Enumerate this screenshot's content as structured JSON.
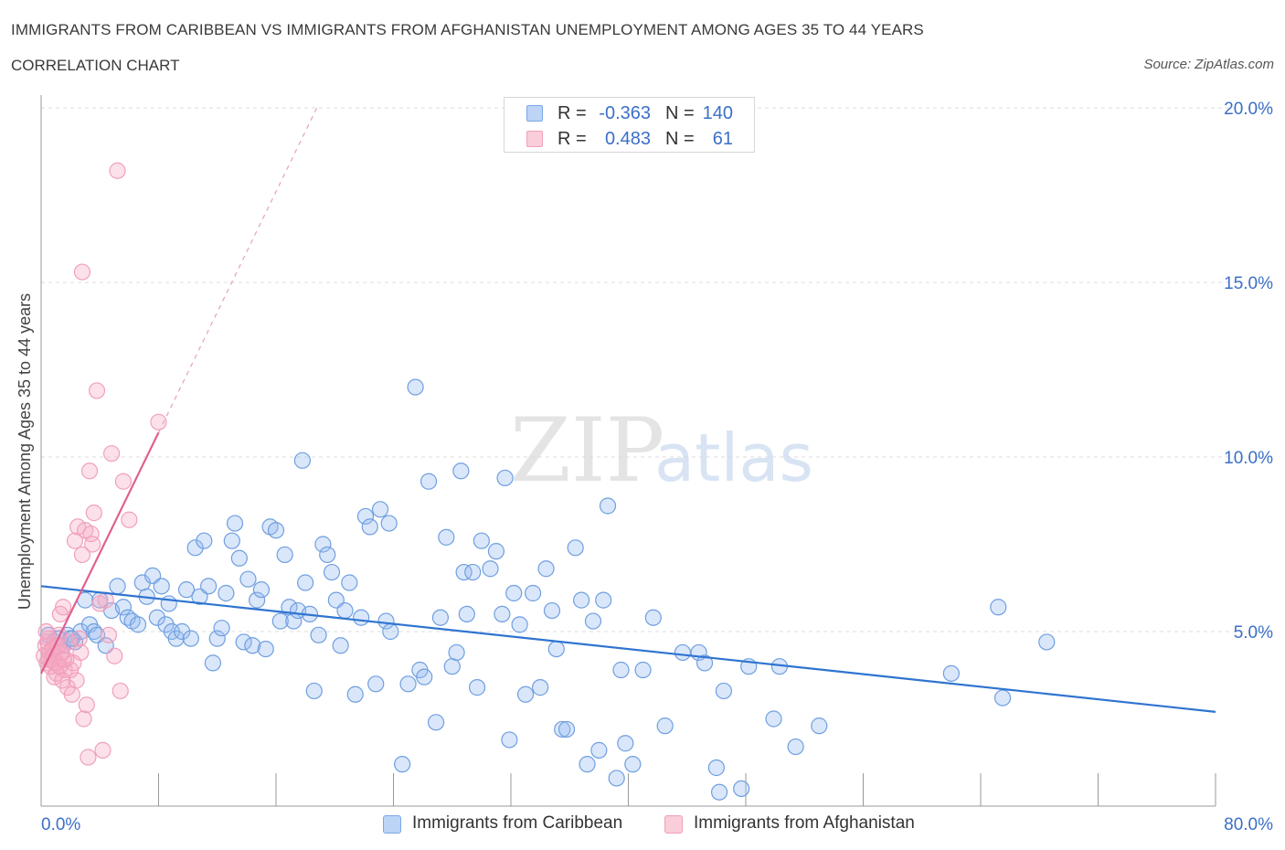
{
  "header": {
    "title": "IMMIGRANTS FROM CARIBBEAN VS IMMIGRANTS FROM AFGHANISTAN UNEMPLOYMENT AMONG AGES 35 TO 44 YEARS",
    "subtitle": "CORRELATION CHART",
    "source": "Source: ZipAtlas.com"
  },
  "watermark": {
    "zip": "ZIP",
    "atlas": "atlas"
  },
  "stats_legend": {
    "rows": [
      {
        "r_label": "R =",
        "r_value": "-0.363",
        "n_label": "N =",
        "n_value": "140",
        "color": "#7aa8e8"
      },
      {
        "r_label": "R =",
        "r_value": "0.483",
        "n_label": "N =",
        "n_value": "61",
        "color": "#f0a0b8"
      }
    ]
  },
  "chart_data": {
    "type": "scatter",
    "title": "IMMIGRANTS FROM CARIBBEAN VS IMMIGRANTS FROM AFGHANISTAN UNEMPLOYMENT AMONG AGES 35 TO 44 YEARS",
    "ylabel": "Unemployment Among Ages 35 to 44 years",
    "xlabel": "",
    "xlim": [
      0,
      80
    ],
    "ylim": [
      0,
      20
    ],
    "x_tick_labels": [
      "0.0%",
      "80.0%"
    ],
    "y_ticks": [
      5,
      10,
      15,
      20
    ],
    "y_tick_labels": [
      "5.0%",
      "10.0%",
      "15.0%",
      "20.0%"
    ],
    "grid": true,
    "legend_position": "bottom-center",
    "series": [
      {
        "name": "Immigrants from Caribbean",
        "color": "#6f9fe0",
        "line_color": "#2f74d0",
        "trend": {
          "x": [
            0,
            80
          ],
          "y": [
            6.3,
            2.7
          ]
        },
        "points": [
          [
            0.5,
            4.9
          ],
          [
            0.9,
            4.7
          ],
          [
            1.2,
            4.8
          ],
          [
            1.5,
            4.6
          ],
          [
            1.8,
            4.9
          ],
          [
            2.0,
            4.8
          ],
          [
            2.3,
            4.7
          ],
          [
            2.7,
            5.0
          ],
          [
            3.0,
            5.9
          ],
          [
            3.3,
            5.2
          ],
          [
            3.6,
            5.0
          ],
          [
            3.8,
            4.9
          ],
          [
            4.0,
            5.9
          ],
          [
            4.4,
            4.6
          ],
          [
            4.8,
            5.6
          ],
          [
            5.2,
            6.3
          ],
          [
            5.6,
            5.7
          ],
          [
            5.9,
            5.4
          ],
          [
            6.2,
            5.3
          ],
          [
            6.6,
            5.2
          ],
          [
            6.9,
            6.4
          ],
          [
            7.2,
            6.0
          ],
          [
            7.6,
            6.6
          ],
          [
            7.9,
            5.4
          ],
          [
            8.2,
            6.3
          ],
          [
            8.5,
            5.2
          ],
          [
            8.7,
            5.8
          ],
          [
            8.9,
            5.0
          ],
          [
            9.2,
            4.8
          ],
          [
            9.6,
            5.0
          ],
          [
            9.9,
            6.2
          ],
          [
            10.2,
            4.8
          ],
          [
            10.5,
            7.4
          ],
          [
            10.8,
            6.0
          ],
          [
            11.1,
            7.6
          ],
          [
            11.4,
            6.3
          ],
          [
            11.7,
            4.1
          ],
          [
            12.0,
            4.8
          ],
          [
            12.3,
            5.1
          ],
          [
            12.6,
            6.1
          ],
          [
            13.0,
            7.6
          ],
          [
            13.2,
            8.1
          ],
          [
            13.5,
            7.1
          ],
          [
            13.8,
            4.7
          ],
          [
            14.1,
            6.5
          ],
          [
            14.4,
            4.6
          ],
          [
            14.7,
            5.9
          ],
          [
            15.0,
            6.2
          ],
          [
            15.3,
            4.5
          ],
          [
            15.6,
            8.0
          ],
          [
            16.0,
            7.9
          ],
          [
            16.3,
            5.3
          ],
          [
            16.6,
            7.2
          ],
          [
            16.9,
            5.7
          ],
          [
            17.2,
            5.3
          ],
          [
            17.5,
            5.6
          ],
          [
            17.8,
            9.9
          ],
          [
            18.0,
            6.4
          ],
          [
            18.3,
            5.5
          ],
          [
            18.6,
            3.3
          ],
          [
            18.9,
            4.9
          ],
          [
            19.2,
            7.5
          ],
          [
            19.5,
            7.2
          ],
          [
            19.8,
            6.7
          ],
          [
            20.1,
            5.9
          ],
          [
            20.4,
            4.6
          ],
          [
            20.7,
            5.6
          ],
          [
            21.0,
            6.4
          ],
          [
            21.4,
            3.2
          ],
          [
            21.8,
            5.4
          ],
          [
            22.1,
            8.3
          ],
          [
            22.4,
            8.0
          ],
          [
            22.8,
            3.5
          ],
          [
            23.1,
            8.5
          ],
          [
            23.5,
            5.3
          ],
          [
            23.7,
            8.1
          ],
          [
            23.8,
            5.0
          ],
          [
            24.6,
            1.2
          ],
          [
            25.0,
            3.5
          ],
          [
            25.5,
            12.0
          ],
          [
            25.8,
            3.9
          ],
          [
            26.1,
            3.7
          ],
          [
            26.4,
            9.3
          ],
          [
            26.9,
            2.4
          ],
          [
            27.2,
            5.4
          ],
          [
            27.6,
            7.7
          ],
          [
            28.0,
            4.0
          ],
          [
            28.3,
            4.4
          ],
          [
            28.6,
            9.6
          ],
          [
            28.8,
            6.7
          ],
          [
            29.0,
            5.5
          ],
          [
            29.4,
            6.7
          ],
          [
            29.7,
            3.4
          ],
          [
            30.0,
            7.6
          ],
          [
            30.6,
            6.8
          ],
          [
            31.0,
            7.3
          ],
          [
            31.4,
            5.5
          ],
          [
            31.6,
            9.4
          ],
          [
            31.9,
            1.9
          ],
          [
            32.2,
            6.1
          ],
          [
            32.6,
            5.2
          ],
          [
            33.0,
            3.2
          ],
          [
            33.5,
            6.1
          ],
          [
            34.0,
            3.4
          ],
          [
            34.4,
            6.8
          ],
          [
            34.8,
            5.6
          ],
          [
            35.1,
            4.5
          ],
          [
            35.5,
            2.2
          ],
          [
            35.8,
            2.2
          ],
          [
            36.4,
            7.4
          ],
          [
            36.8,
            5.9
          ],
          [
            37.2,
            1.2
          ],
          [
            37.6,
            5.3
          ],
          [
            38.0,
            1.6
          ],
          [
            38.3,
            5.9
          ],
          [
            38.6,
            8.6
          ],
          [
            39.2,
            0.8
          ],
          [
            39.5,
            3.9
          ],
          [
            39.8,
            1.8
          ],
          [
            40.3,
            1.2
          ],
          [
            41.0,
            3.9
          ],
          [
            41.7,
            5.4
          ],
          [
            42.5,
            2.3
          ],
          [
            43.7,
            4.4
          ],
          [
            44.8,
            4.4
          ],
          [
            45.2,
            4.1
          ],
          [
            46.0,
            1.1
          ],
          [
            46.2,
            0.4
          ],
          [
            46.5,
            3.3
          ],
          [
            47.7,
            0.5
          ],
          [
            48.2,
            4.0
          ],
          [
            49.9,
            2.5
          ],
          [
            50.3,
            4.0
          ],
          [
            51.4,
            1.7
          ],
          [
            53.0,
            2.3
          ],
          [
            62.0,
            3.8
          ],
          [
            65.2,
            5.7
          ],
          [
            65.5,
            3.1
          ],
          [
            68.5,
            4.7
          ],
          [
            2.1,
            4.8
          ]
        ]
      },
      {
        "name": "Immigrants from Afghanistan",
        "color": "#f0a0bc",
        "line_color": "#e06090",
        "trend": {
          "x": [
            0,
            8
          ],
          "y": [
            3.8,
            10.7
          ]
        },
        "points": [
          [
            0.2,
            4.3
          ],
          [
            0.3,
            4.6
          ],
          [
            0.4,
            4.1
          ],
          [
            0.5,
            4.8
          ],
          [
            0.6,
            4.4
          ],
          [
            0.7,
            4.2
          ],
          [
            0.8,
            4.5
          ],
          [
            0.9,
            3.7
          ],
          [
            1.0,
            4.6
          ],
          [
            1.1,
            4.1
          ],
          [
            1.2,
            4.9
          ],
          [
            1.3,
            5.5
          ],
          [
            1.4,
            4.4
          ],
          [
            1.5,
            5.7
          ],
          [
            1.6,
            3.9
          ],
          [
            1.7,
            4.2
          ],
          [
            1.8,
            3.4
          ],
          [
            1.9,
            4.7
          ],
          [
            2.0,
            3.9
          ],
          [
            2.1,
            3.2
          ],
          [
            2.2,
            4.1
          ],
          [
            2.3,
            7.6
          ],
          [
            2.4,
            3.6
          ],
          [
            2.5,
            8.0
          ],
          [
            2.6,
            4.8
          ],
          [
            2.7,
            4.4
          ],
          [
            2.8,
            7.2
          ],
          [
            2.9,
            2.5
          ],
          [
            3.0,
            7.9
          ],
          [
            3.1,
            2.9
          ],
          [
            3.2,
            1.4
          ],
          [
            3.3,
            9.6
          ],
          [
            3.4,
            7.8
          ],
          [
            3.5,
            7.5
          ],
          [
            3.6,
            8.4
          ],
          [
            3.8,
            11.9
          ],
          [
            4.0,
            5.8
          ],
          [
            4.2,
            1.6
          ],
          [
            4.4,
            5.9
          ],
          [
            4.6,
            4.9
          ],
          [
            4.8,
            10.1
          ],
          [
            5.0,
            4.3
          ],
          [
            5.2,
            18.2
          ],
          [
            5.4,
            3.3
          ],
          [
            5.6,
            9.3
          ],
          [
            6.0,
            8.2
          ],
          [
            8.0,
            11.0
          ],
          [
            2.8,
            15.3
          ],
          [
            0.35,
            5.0
          ],
          [
            0.45,
            4.7
          ],
          [
            0.55,
            4.2
          ],
          [
            0.65,
            4.0
          ],
          [
            0.75,
            4.5
          ],
          [
            0.85,
            4.3
          ],
          [
            0.95,
            4.1
          ],
          [
            1.05,
            3.8
          ],
          [
            1.15,
            4.6
          ],
          [
            1.25,
            4.0
          ],
          [
            1.35,
            4.4
          ],
          [
            1.45,
            3.6
          ],
          [
            1.55,
            4.2
          ]
        ]
      }
    ]
  }
}
